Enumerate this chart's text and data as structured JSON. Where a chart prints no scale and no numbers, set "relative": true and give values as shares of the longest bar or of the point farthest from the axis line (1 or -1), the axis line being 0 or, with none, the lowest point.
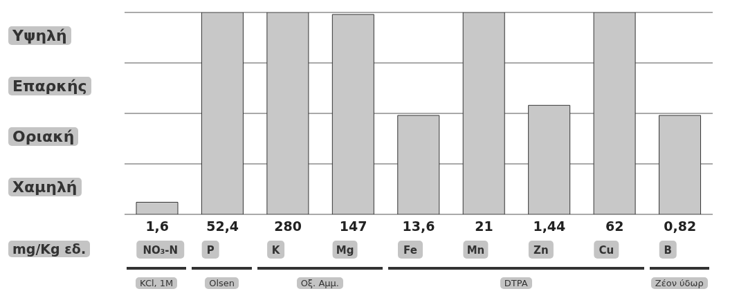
{
  "chart_data": {
    "type": "bar",
    "relative": true,
    "categories": [
      "NO₃-N",
      "P",
      "K",
      "Mg",
      "Fe",
      "Mn",
      "Zn",
      "Cu",
      "B"
    ],
    "values": [
      0.06,
      1,
      1,
      0.99,
      0.49,
      1,
      0.54,
      1,
      0.49
    ],
    "color": "#c8c8c8",
    "ylabel": "mg/Kg εδ.",
    "grid": "y",
    "annotations": [
      "Υψηλή",
      "Επαρκής",
      "Οριακή",
      "Χαμηλή",
      "KCl, 1M",
      "Olsen",
      "Οξ. Αμμ.",
      "DTPA",
      "Ζέον ύδωρ",
      "1,6",
      "52,4",
      "280",
      "147",
      "13,6",
      "21",
      "1,44",
      "62",
      "0,82"
    ]
  }
}
